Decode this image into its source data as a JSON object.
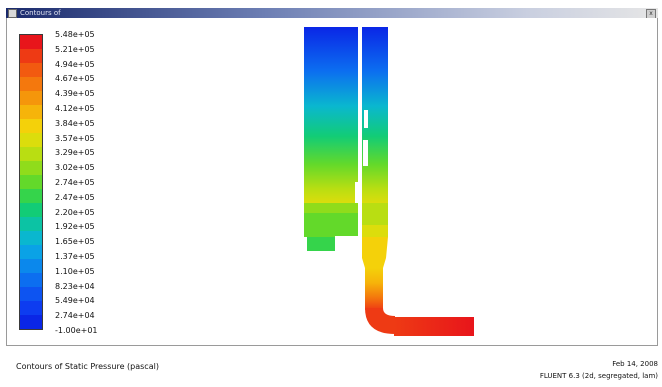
{
  "window": {
    "title": "Contours of",
    "controls": [
      "x"
    ]
  },
  "colorbar": {
    "colors": [
      "#e8151b",
      "#ee3a14",
      "#f25a10",
      "#f4780d",
      "#f5960b",
      "#f6b40a",
      "#f4d10a",
      "#dcdd0c",
      "#b9de12",
      "#90dc1b",
      "#63d92a",
      "#35d44b",
      "#12cc76",
      "#0cc3a4",
      "#0ab7cf",
      "#0aa2e6",
      "#0b88ec",
      "#0c6ef0",
      "#0d54f1",
      "#0d3cf0",
      "#0a26e6"
    ],
    "labels": [
      "5.48e+05",
      "5.21e+05",
      "4.94e+05",
      "4.67e+05",
      "4.39e+05",
      "4.12e+05",
      "3.84e+05",
      "3.57e+05",
      "3.29e+05",
      "3.02e+05",
      "2.74e+05",
      "2.47e+05",
      "2.20e+05",
      "1.92e+05",
      "1.65e+05",
      "1.37e+05",
      "1.10e+05",
      "8.23e+04",
      "5.49e+04",
      "2.74e+04",
      "-1.00e+01"
    ]
  },
  "status": {
    "caption": "Contours of Static Pressure (pascal)",
    "date": "Feb 14, 2008",
    "version": "FLUENT 6.3 (2d, segregated, lam)"
  }
}
